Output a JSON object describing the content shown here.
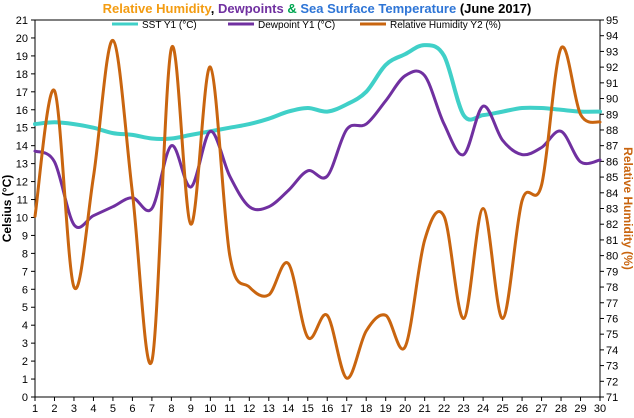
{
  "title_parts": [
    {
      "text": "Relative Humidity",
      "color": "#f39c12"
    },
    {
      "text": ", ",
      "color": "#000000"
    },
    {
      "text": "Dewpoints",
      "color": "#7030a0"
    },
    {
      "text": " & ",
      "color": "#00a651"
    },
    {
      "text": "Sea Surface Temperature",
      "color": "#2e75d6"
    },
    {
      "text": " (June 2017)",
      "color": "#000000"
    }
  ],
  "chart_data": {
    "type": "line",
    "title": "Relative Humidity, Dewpoints & Sea Surface Temperature (June 2017)",
    "x": [
      1,
      2,
      3,
      4,
      5,
      6,
      7,
      8,
      9,
      10,
      11,
      12,
      13,
      14,
      15,
      16,
      17,
      18,
      19,
      20,
      21,
      22,
      23,
      24,
      25,
      26,
      27,
      28,
      29,
      30
    ],
    "xlim": [
      1,
      30
    ],
    "ylabel": "Celsius (°C)",
    "ylim": [
      0,
      21
    ],
    "y_ticks": [
      0,
      1,
      2,
      3,
      4,
      5,
      6,
      7,
      8,
      9,
      10,
      11,
      12,
      13,
      14,
      15,
      16,
      17,
      18,
      19,
      20,
      21
    ],
    "y2label": "Relative Humidity (%)",
    "y2lim": [
      71,
      95
    ],
    "y2_ticks": [
      71,
      72,
      73,
      74,
      75,
      76,
      77,
      78,
      79,
      80,
      81,
      82,
      83,
      84,
      85,
      86,
      87,
      88,
      89,
      90,
      91,
      92,
      93,
      94,
      95
    ],
    "legend_position": "top",
    "grid": false,
    "series": [
      {
        "name": "SST Y1 (°C)",
        "axis": "y1",
        "color": "#40d0c8",
        "values": [
          15.2,
          15.3,
          15.2,
          15.0,
          14.7,
          14.6,
          14.4,
          14.4,
          14.6,
          14.8,
          15.0,
          15.2,
          15.5,
          15.9,
          16.1,
          15.9,
          16.3,
          17.0,
          18.5,
          19.1,
          19.6,
          19.0,
          15.7,
          15.7,
          15.9,
          16.1,
          16.1,
          16.0,
          15.9,
          15.9
        ]
      },
      {
        "name": "Dewpoint Y1 (°C)",
        "axis": "y1",
        "color": "#7030a0",
        "values": [
          13.7,
          13.1,
          9.6,
          10.1,
          10.6,
          11.1,
          10.5,
          14.0,
          11.7,
          14.8,
          12.3,
          10.6,
          10.6,
          11.5,
          12.6,
          12.3,
          14.9,
          15.2,
          16.5,
          17.9,
          17.9,
          15.2,
          13.5,
          16.2,
          14.3,
          13.5,
          13.9,
          14.8,
          13.1,
          13.2
        ]
      },
      {
        "name": "Relative Humidity Y2 (%)",
        "axis": "y2",
        "color": "#c9650f",
        "values": [
          82.5,
          90.5,
          78,
          85,
          93.7,
          84,
          73.3,
          93.2,
          82,
          92,
          80,
          78,
          77.5,
          79.5,
          74.8,
          76.2,
          72.2,
          75.2,
          76.2,
          74.2,
          81,
          82.5,
          76,
          83,
          76,
          83.5,
          84.5,
          93.2,
          89,
          88.5
        ]
      }
    ]
  }
}
